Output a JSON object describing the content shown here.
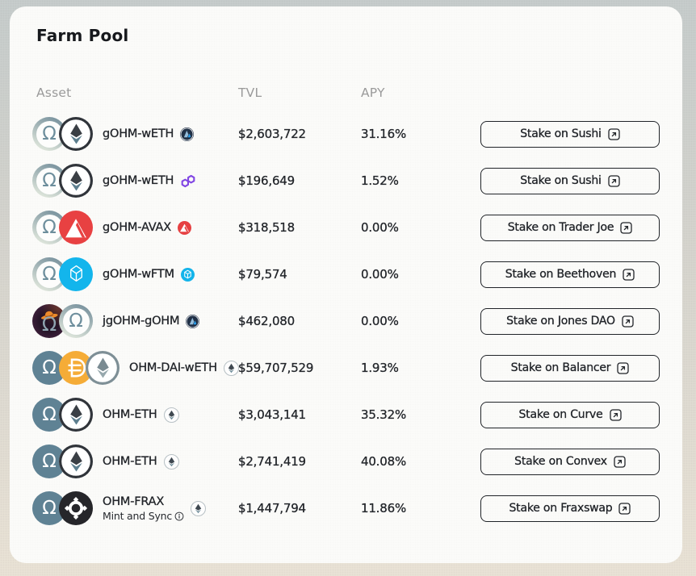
{
  "title": "Farm Pool",
  "headers": {
    "asset": "Asset",
    "tvl": "TVL",
    "apy": "APY"
  },
  "rows": [
    {
      "name": "gOHM-wETH",
      "tokens": [
        "gohm",
        "eth"
      ],
      "network": "arbitrum",
      "tvl": "$2,603,722",
      "apy": "31.16%",
      "button": "Stake on Sushi"
    },
    {
      "name": "gOHM-wETH",
      "tokens": [
        "gohm",
        "eth"
      ],
      "network": "polygon",
      "tvl": "$196,649",
      "apy": "1.52%",
      "button": "Stake on Sushi"
    },
    {
      "name": "gOHM-AVAX",
      "tokens": [
        "gohm",
        "avax"
      ],
      "network": "avalanche",
      "tvl": "$318,518",
      "apy": "0.00%",
      "button": "Stake on Trader Joe"
    },
    {
      "name": "gOHM-wFTM",
      "tokens": [
        "gohm",
        "ftm"
      ],
      "network": "fantom",
      "tvl": "$79,574",
      "apy": "0.00%",
      "button": "Stake on Beethoven"
    },
    {
      "name": "jgOHM-gOHM",
      "tokens": [
        "jgohm",
        "gohm"
      ],
      "network": "arbitrum",
      "tvl": "$462,080",
      "apy": "0.00%",
      "button": "Stake on Jones DAO"
    },
    {
      "name": "OHM-DAI-wETH",
      "tokens": [
        "ohm",
        "dai",
        "weth"
      ],
      "network": "ethereum",
      "tvl": "$59,707,529",
      "apy": "1.93%",
      "button": "Stake on Balancer"
    },
    {
      "name": "OHM-ETH",
      "tokens": [
        "ohm",
        "eth"
      ],
      "network": "ethereum",
      "tvl": "$3,043,141",
      "apy": "35.32%",
      "button": "Stake on Curve"
    },
    {
      "name": "OHM-ETH",
      "tokens": [
        "ohm",
        "eth"
      ],
      "network": "ethereum",
      "tvl": "$2,741,419",
      "apy": "40.08%",
      "button": "Stake on Convex"
    },
    {
      "name": "OHM-FRAX",
      "subtitle": "Mint and Sync",
      "tokens": [
        "ohm",
        "frax"
      ],
      "network": "ethereum",
      "tvl": "$1,447,794",
      "apy": "11.86%",
      "button": "Stake on Fraxswap"
    }
  ],
  "colors": {
    "card_bg": "#fcfcfa",
    "text_dark": "#23262b",
    "text_gray": "#9b9b9b",
    "ohm_slate": "#5f8294",
    "avalanche_red": "#e84142",
    "fantom_blue": "#13b5ec",
    "dai_gold": "#f5ac37",
    "frax_black": "#26262a",
    "polygon_purple": "#8247e5",
    "arbitrum_navy": "#213147"
  }
}
